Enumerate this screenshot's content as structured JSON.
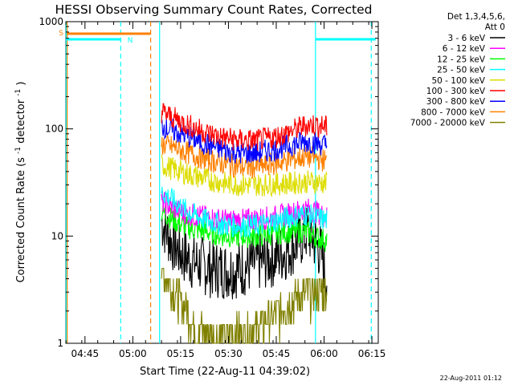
{
  "chart_data": {
    "type": "line",
    "title": "HESSI Observing Summary Count Rates, Corrected",
    "xlabel": "Start Time (22-Aug-11 04:39:02)",
    "ylabel": "Corrected Count Rate (s⁻¹ detector⁻¹)",
    "ylabel_main": "Corrected Count Rate (s",
    "ylabel_sup1": "-1",
    "ylabel_mid": " detector",
    "ylabel_sup2": "-1",
    "ylabel_end": ")",
    "yscale": "log",
    "ylim": [
      1,
      1000
    ],
    "xlim_minutes": [
      0,
      98
    ],
    "x_ticks": [
      {
        "t": 6,
        "label": "04:45"
      },
      {
        "t": 21,
        "label": "05:00"
      },
      {
        "t": 36,
        "label": "05:15"
      },
      {
        "t": 51,
        "label": "05:30"
      },
      {
        "t": 66,
        "label": "05:45"
      },
      {
        "t": 81,
        "label": "06:00"
      },
      {
        "t": 96,
        "label": "06:15"
      }
    ],
    "y_ticks": [
      {
        "v": 1,
        "label": "1"
      },
      {
        "v": 10,
        "label": "10"
      },
      {
        "v": 100,
        "label": "100"
      },
      {
        "v": 1000,
        "label": "1000"
      }
    ],
    "legend_header": [
      "Det 1,3,4,5,6,",
      "Att 0"
    ],
    "series": [
      {
        "name": "3 - 6 keV",
        "color": "#000000",
        "points": [
          [
            30,
            14
          ],
          [
            33,
            9
          ],
          [
            36,
            7
          ],
          [
            39,
            6
          ],
          [
            45,
            5
          ],
          [
            50,
            4.8
          ],
          [
            55,
            5
          ],
          [
            60,
            5.6
          ],
          [
            65,
            6.2
          ],
          [
            70,
            7.5
          ],
          [
            73,
            9
          ],
          [
            76,
            11
          ],
          [
            78,
            9
          ],
          [
            80,
            7
          ],
          [
            82,
            4
          ]
        ]
      },
      {
        "name": "6 - 12 keV",
        "color": "#ff00ff",
        "points": [
          [
            30,
            21
          ],
          [
            34,
            18
          ],
          [
            38,
            16
          ],
          [
            44,
            15
          ],
          [
            50,
            14
          ],
          [
            55,
            14
          ],
          [
            60,
            14.5
          ],
          [
            65,
            15
          ],
          [
            70,
            16
          ],
          [
            75,
            18
          ],
          [
            78,
            17
          ],
          [
            82,
            15
          ]
        ]
      },
      {
        "name": "12 - 25 keV",
        "color": "#00ff00",
        "points": [
          [
            30,
            17
          ],
          [
            34,
            14
          ],
          [
            38,
            12
          ],
          [
            44,
            11
          ],
          [
            50,
            10
          ],
          [
            55,
            10
          ],
          [
            60,
            10
          ],
          [
            65,
            10.5
          ],
          [
            70,
            11
          ],
          [
            75,
            11
          ],
          [
            78,
            10
          ],
          [
            82,
            9
          ]
        ]
      },
      {
        "name": "25 - 50 keV",
        "color": "#00ffff",
        "points": [
          [
            30,
            26
          ],
          [
            34,
            21
          ],
          [
            38,
            17
          ],
          [
            44,
            14
          ],
          [
            50,
            12.5
          ],
          [
            55,
            12.5
          ],
          [
            60,
            12.5
          ],
          [
            65,
            13.5
          ],
          [
            70,
            15
          ],
          [
            75,
            16
          ],
          [
            78,
            15
          ],
          [
            82,
            14
          ]
        ]
      },
      {
        "name": "50 - 100 keV",
        "color": "#dddd00",
        "points": [
          [
            30,
            46
          ],
          [
            34,
            42
          ],
          [
            38,
            38
          ],
          [
            44,
            34
          ],
          [
            50,
            31
          ],
          [
            55,
            30
          ],
          [
            60,
            30
          ],
          [
            65,
            30.5
          ],
          [
            70,
            31
          ],
          [
            75,
            32
          ],
          [
            78,
            32
          ],
          [
            82,
            31
          ]
        ]
      },
      {
        "name": "100 - 300 keV",
        "color": "#ff0000",
        "points": [
          [
            30,
            145
          ],
          [
            34,
            125
          ],
          [
            38,
            110
          ],
          [
            44,
            92
          ],
          [
            50,
            82
          ],
          [
            55,
            78
          ],
          [
            60,
            78
          ],
          [
            65,
            83
          ],
          [
            70,
            93
          ],
          [
            75,
            108
          ],
          [
            78,
            110
          ],
          [
            82,
            103
          ]
        ]
      },
      {
        "name": "300 - 800 keV",
        "color": "#0000ff",
        "points": [
          [
            30,
            108
          ],
          [
            34,
            95
          ],
          [
            38,
            86
          ],
          [
            44,
            72
          ],
          [
            50,
            63
          ],
          [
            55,
            59
          ],
          [
            60,
            60
          ],
          [
            65,
            64
          ],
          [
            70,
            70
          ],
          [
            75,
            76
          ],
          [
            78,
            74
          ],
          [
            82,
            70
          ]
        ]
      },
      {
        "name": "800 - 7000 keV",
        "color": "#ff8000",
        "points": [
          [
            30,
            72
          ],
          [
            34,
            67
          ],
          [
            38,
            60
          ],
          [
            44,
            52
          ],
          [
            50,
            47
          ],
          [
            55,
            44
          ],
          [
            60,
            44
          ],
          [
            65,
            47
          ],
          [
            70,
            51
          ],
          [
            75,
            55
          ],
          [
            78,
            54
          ],
          [
            82,
            50
          ]
        ]
      },
      {
        "name": "7000 - 20000 keV",
        "color": "#808000",
        "points": [
          [
            30,
            4.5
          ],
          [
            32,
            4
          ],
          [
            34,
            3
          ],
          [
            36,
            2.5
          ],
          [
            38,
            2
          ],
          [
            40,
            1.5
          ],
          [
            42,
            1.3
          ],
          [
            46,
            1.2
          ],
          [
            50,
            1.1
          ],
          [
            54,
            1.2
          ],
          [
            58,
            1.3
          ],
          [
            62,
            1.5
          ],
          [
            66,
            1.8
          ],
          [
            70,
            2.4
          ],
          [
            74,
            2.8
          ],
          [
            78,
            2.9
          ],
          [
            82,
            3
          ]
        ]
      }
    ],
    "flags": [
      {
        "label": "S",
        "color": "#ff8000"
      },
      {
        "label": "N",
        "color": "#00ffff"
      }
    ]
  },
  "footer_stamp": "22-Aug-2011 01:12"
}
